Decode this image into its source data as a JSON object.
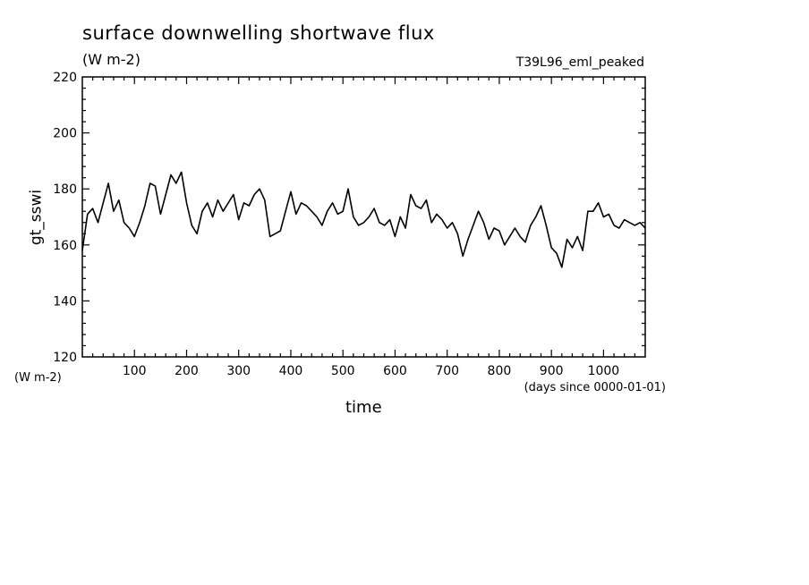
{
  "chart_data": {
    "type": "line",
    "title": "surface downwelling shortwave flux",
    "units": "(W m-2)",
    "run_label": "T39L96_eml_peaked",
    "ylabel": "gt_sswi",
    "yunit": "(W m-2)",
    "xlabel": "time",
    "xunit": "(days since 0000-01-01)",
    "xlim": [
      0,
      1080
    ],
    "ylim": [
      120,
      220
    ],
    "xticks": [
      100,
      200,
      300,
      400,
      500,
      600,
      700,
      800,
      900,
      1000
    ],
    "yticks": [
      120,
      140,
      160,
      180,
      200,
      220
    ],
    "grid": false,
    "series": [
      {
        "x": [
          0,
          10,
          20,
          30,
          40,
          50,
          60,
          70,
          80,
          90,
          100,
          110,
          120,
          130,
          140,
          150,
          160,
          170,
          180,
          190,
          200,
          210,
          220,
          230,
          240,
          250,
          260,
          270,
          280,
          290,
          300,
          310,
          320,
          330,
          340,
          350,
          360,
          370,
          380,
          390,
          400,
          410,
          420,
          430,
          440,
          450,
          460,
          470,
          480,
          490,
          500,
          510,
          520,
          530,
          540,
          550,
          560,
          570,
          580,
          590,
          600,
          610,
          620,
          630,
          640,
          650,
          660,
          670,
          680,
          690,
          700,
          710,
          720,
          730,
          740,
          750,
          760,
          770,
          780,
          790,
          800,
          810,
          820,
          830,
          840,
          850,
          860,
          870,
          880,
          890,
          900,
          910,
          920,
          930,
          940,
          950,
          960,
          970,
          980,
          990,
          1000,
          1010,
          1020,
          1030,
          1040,
          1050,
          1060,
          1070,
          1080
        ],
        "y": [
          158,
          171,
          173,
          168,
          175,
          182,
          172,
          176,
          168,
          166,
          163,
          168,
          174,
          182,
          181,
          171,
          178,
          185,
          182,
          186,
          175,
          167,
          164,
          172,
          175,
          170,
          176,
          172,
          175,
          178,
          169,
          175,
          174,
          178,
          180,
          176,
          163,
          164,
          165,
          172,
          179,
          171,
          175,
          174,
          172,
          170,
          167,
          172,
          175,
          171,
          172,
          180,
          170,
          167,
          168,
          170,
          173,
          168,
          167,
          169,
          163,
          170,
          166,
          178,
          174,
          173,
          176,
          168,
          171,
          169,
          166,
          168,
          164,
          156,
          162,
          167,
          172,
          168,
          162,
          166,
          165,
          160,
          163,
          166,
          163,
          161,
          167,
          170,
          174,
          167,
          159,
          157,
          152,
          162,
          159,
          163,
          158,
          172,
          172,
          175,
          170,
          171,
          167,
          166,
          169,
          168,
          167,
          168,
          166
        ]
      }
    ]
  }
}
